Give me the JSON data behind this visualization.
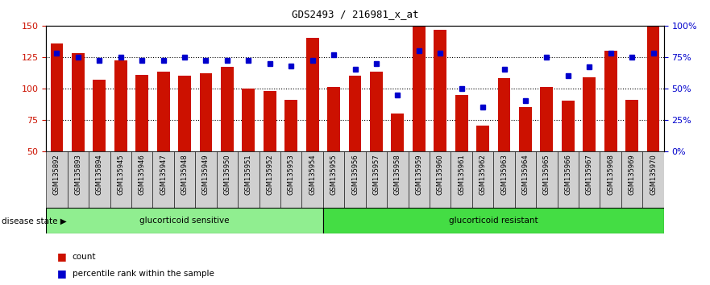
{
  "title": "GDS2493 / 216981_x_at",
  "samples": [
    "GSM135892",
    "GSM135893",
    "GSM135894",
    "GSM135945",
    "GSM135946",
    "GSM135947",
    "GSM135948",
    "GSM135949",
    "GSM135950",
    "GSM135951",
    "GSM135952",
    "GSM135953",
    "GSM135954",
    "GSM135955",
    "GSM135956",
    "GSM135957",
    "GSM135958",
    "GSM135959",
    "GSM135960",
    "GSM135961",
    "GSM135962",
    "GSM135963",
    "GSM135964",
    "GSM135965",
    "GSM135966",
    "GSM135967",
    "GSM135968",
    "GSM135969",
    "GSM135970"
  ],
  "counts": [
    136,
    128,
    107,
    122,
    111,
    113,
    110,
    112,
    117,
    100,
    98,
    91,
    140,
    101,
    110,
    113,
    80,
    151,
    147,
    95,
    70,
    108,
    85,
    101,
    90,
    109,
    130,
    91,
    150
  ],
  "percentiles": [
    78,
    75,
    72,
    75,
    72,
    72,
    75,
    72,
    72,
    72,
    70,
    68,
    72,
    77,
    65,
    70,
    45,
    80,
    78,
    50,
    35,
    65,
    40,
    75,
    60,
    67,
    78,
    75,
    78
  ],
  "group1_count": 13,
  "group2_count": 16,
  "group1_label": "glucorticoid sensitive",
  "group2_label": "glucorticoid resistant",
  "disease_state_label": "disease state",
  "bar_color": "#cc1100",
  "dot_color": "#0000cc",
  "y_min": 50,
  "y_max": 150,
  "y_ticks": [
    50,
    75,
    100,
    125,
    150
  ],
  "y2_ticks": [
    0,
    25,
    50,
    75,
    100
  ],
  "y2_labels": [
    "0%",
    "25%",
    "50%",
    "75%",
    "100%"
  ],
  "hline_values": [
    75,
    100,
    125
  ],
  "legend_count_label": "count",
  "legend_pct_label": "percentile rank within the sample",
  "background_color": "#ffffff",
  "plot_bg_color": "#ffffff",
  "tick_label_color_left": "#cc1100",
  "tick_label_color_right": "#0000cc",
  "group1_color": "#90ee90",
  "group2_color": "#44dd44"
}
